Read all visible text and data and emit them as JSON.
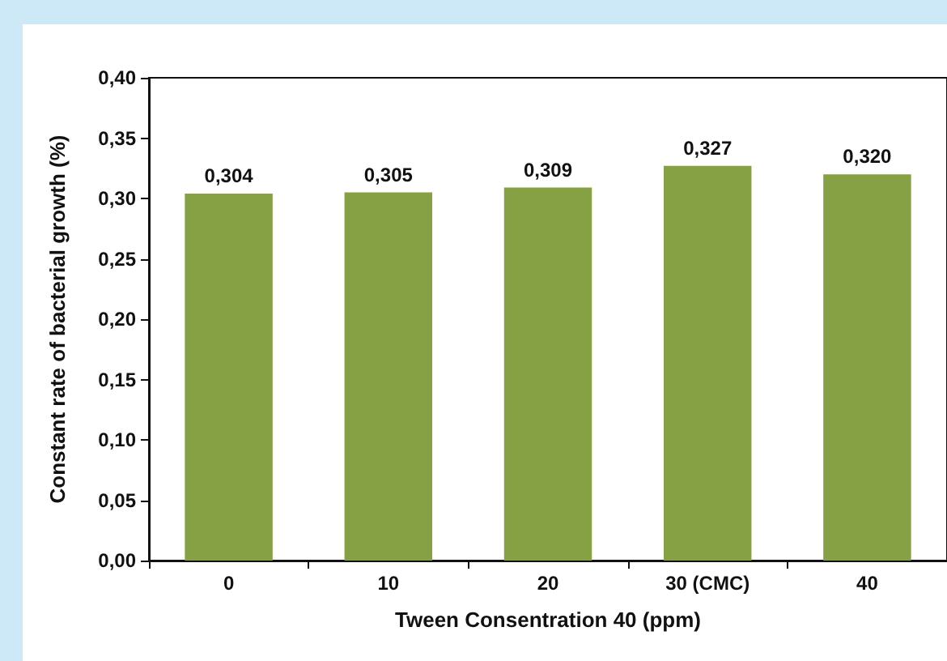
{
  "chart_data": {
    "type": "bar",
    "xlabel": "Tween Consentration 40 (ppm)",
    "ylabel": "Constant rate of bacterial growth (%)",
    "categories": [
      "0",
      "10",
      "20",
      "30 (CMC)",
      "40"
    ],
    "values": [
      0.304,
      0.305,
      0.309,
      0.327,
      0.32
    ],
    "value_labels": [
      "0,304",
      "0,305",
      "0,309",
      "0,327",
      "0,320"
    ],
    "color": "#86a044",
    "ylim": [
      0,
      0.4
    ],
    "yticks": [
      {
        "value": 0,
        "label": "0,00"
      },
      {
        "value": 0.05,
        "label": "0,05"
      },
      {
        "value": 0.1,
        "label": "0,10"
      },
      {
        "value": 0.15,
        "label": "0,15"
      },
      {
        "value": 0.2,
        "label": "0,20"
      },
      {
        "value": 0.25,
        "label": "0,25"
      },
      {
        "value": 0.3,
        "label": "0,30"
      },
      {
        "value": 0.35,
        "label": "0,35"
      },
      {
        "value": 0.4,
        "label": "0,40"
      }
    ],
    "grid": false
  }
}
